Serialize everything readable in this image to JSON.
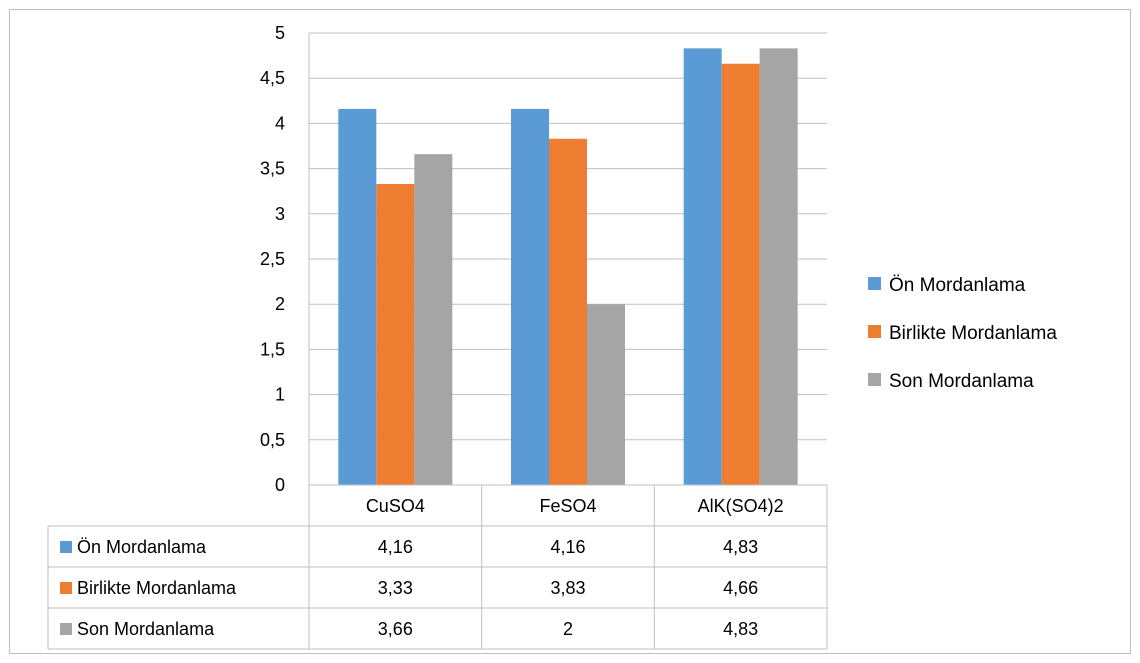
{
  "chart_data": {
    "type": "bar",
    "categories": [
      "CuSO4",
      "FeSO4",
      "AlK(SO4)2"
    ],
    "series": [
      {
        "name": "Ön Mordanlama",
        "values": [
          4.16,
          4.16,
          4.83
        ],
        "labels": [
          "4,16",
          "4,16",
          "4,83"
        ],
        "color": "#5b9bd5"
      },
      {
        "name": "Birlikte Mordanlama",
        "values": [
          3.33,
          3.83,
          4.66
        ],
        "labels": [
          "3,33",
          "3,83",
          "4,66"
        ],
        "color": "#ed7d31"
      },
      {
        "name": "Son Mordanlama",
        "values": [
          3.66,
          2,
          4.83
        ],
        "labels": [
          "3,66",
          "2",
          "4,83"
        ],
        "color": "#a5a5a5"
      }
    ],
    "ylim": [
      0,
      5
    ],
    "yticks": [
      "0",
      "0,5",
      "1",
      "1,5",
      "2",
      "2,5",
      "3",
      "3,5",
      "4",
      "4,5",
      "5"
    ],
    "grid": true,
    "legend_position": "right",
    "data_table": true,
    "title": "",
    "xlabel": "",
    "ylabel": ""
  }
}
